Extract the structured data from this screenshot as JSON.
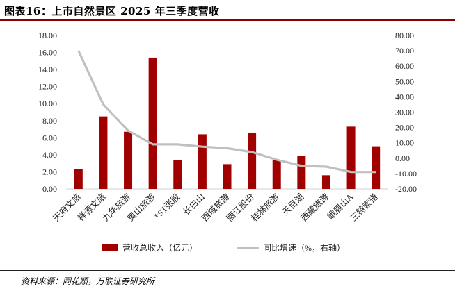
{
  "title": "图表16：上市自然景区 2025 年三季度营收",
  "source": "资料来源：同花顺，万联证券研究所",
  "chart_data": {
    "type": "bar",
    "categories": [
      "天府文旅",
      "祥源文旅",
      "九华旅游",
      "黄山旅游",
      "*ST张股",
      "长白山",
      "西域旅游",
      "丽江股份",
      "桂林旅游",
      "天目湖",
      "西藏旅游",
      "峨眉山A",
      "三特索道"
    ],
    "series": [
      {
        "name": "营收总收入（亿元）",
        "type": "bar",
        "axis": "left",
        "color": "#a00000",
        "values": [
          2.3,
          8.5,
          6.7,
          15.4,
          3.4,
          6.4,
          2.9,
          6.6,
          3.4,
          3.9,
          1.6,
          7.3,
          5.0
        ]
      },
      {
        "name": "同比增速（%，右轴）",
        "type": "line",
        "axis": "right",
        "color": "#c0c0c0",
        "values": [
          70.0,
          35.0,
          18.0,
          9.0,
          9.0,
          7.5,
          6.5,
          4.0,
          -1.0,
          -5.0,
          -5.5,
          -9.0,
          -9.0
        ]
      }
    ],
    "y_left": {
      "ylim": [
        0,
        18
      ],
      "ticks": [
        "0.00",
        "2.00",
        "4.00",
        "6.00",
        "8.00",
        "10.00",
        "12.00",
        "14.00",
        "16.00",
        "18.00"
      ]
    },
    "y_right": {
      "ylim": [
        -20,
        80
      ],
      "ticks": [
        "-20.00",
        "-10.00",
        "0.00",
        "10.00",
        "20.00",
        "30.00",
        "40.00",
        "50.00",
        "60.00",
        "70.00",
        "80.00"
      ]
    },
    "legend": "bottom"
  }
}
